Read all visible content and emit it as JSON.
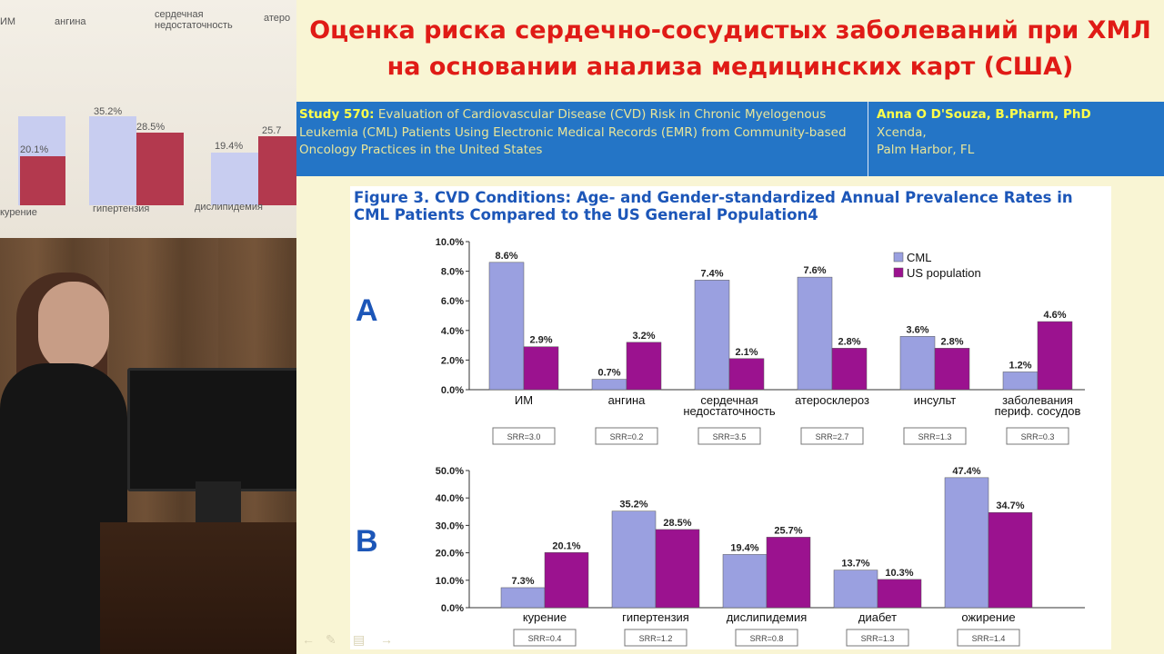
{
  "slide": {
    "title_line1": "Оценка риска сердечно-сосудистых заболеваний при ХМЛ",
    "title_line2": "на основании анализа медицинских карт (США)",
    "study_id": "Study 570:",
    "study_text": "Evaluation of Cardiovascular Disease (CVD) Risk in Chronic Myelogenous Leukemia (CML) Patients Using Electronic Medical Records (EMR) from Community-based Oncology Practices in the United States",
    "author_name": "Anna O D'Souza, B.Pharm, PhD",
    "author_org": "Xcenda,",
    "author_city": "Palm Harbor, FL",
    "figure_title": "Figure 3. CVD Conditions: Age- and Gender-standardized Annual Prevalence Rates in CML Patients Compared to the US General Population4"
  },
  "colors": {
    "title_red": "#e01b16",
    "band_blue": "#2475c6",
    "cml": "#9aa0e0",
    "us_population": "#9b128f",
    "figure_title_blue": "#1c56b8"
  },
  "background_screen": {
    "labels": [
      "ИМ",
      "ангина",
      "сердечная недостаточность",
      "атеро",
      "курение",
      "гипертензия",
      "дислипидемия"
    ],
    "values": [
      "35.2%",
      "28.5%",
      "20.1%",
      "19.4%",
      "25.7"
    ]
  },
  "chart_data": [
    {
      "panel": "A",
      "type": "bar",
      "categories": [
        "ИМ",
        "ангина",
        "сердечная недостаточность",
        "атеросклероз",
        "инсульт",
        "заболевания периф. сосудов"
      ],
      "category_lines": [
        [
          "ИМ"
        ],
        [
          "ангина"
        ],
        [
          "сердечная",
          "недостаточность"
        ],
        [
          "атеросклероз"
        ],
        [
          "инсульт"
        ],
        [
          "заболевания",
          "периф. сосудов"
        ]
      ],
      "series": [
        {
          "name": "CML",
          "values": [
            8.6,
            0.7,
            7.4,
            7.6,
            3.6,
            1.2
          ]
        },
        {
          "name": "US population",
          "values": [
            2.9,
            3.2,
            2.1,
            2.8,
            2.8,
            4.6
          ]
        }
      ],
      "data_labels": [
        [
          "8.6%",
          "0.7%",
          "7.4%",
          "7.6%",
          "3.6%",
          "1.2%"
        ],
        [
          "2.9%",
          "3.2%",
          "2.1%",
          "2.8%",
          "2.8%",
          "4.6%"
        ]
      ],
      "srr": [
        "SRR=3.0",
        "SRR=0.2",
        "SRR=3.5",
        "SRR=2.7",
        "SRR=1.3",
        "SRR=0.3"
      ],
      "yticks": [
        "0.0%",
        "2.0%",
        "4.0%",
        "6.0%",
        "8.0%",
        "10.0%"
      ],
      "ylim": [
        0,
        10
      ],
      "legend": [
        "CML",
        "US population"
      ],
      "legend_position": "top-right",
      "title": "",
      "xlabel": "",
      "ylabel": ""
    },
    {
      "panel": "B",
      "type": "bar",
      "categories": [
        "курение",
        "гипертензия",
        "дислипидемия",
        "диабет",
        "ожирение"
      ],
      "category_lines": [
        [
          "курение"
        ],
        [
          "гипертензия"
        ],
        [
          "дислипидемия"
        ],
        [
          "диабет"
        ],
        [
          "ожирение"
        ]
      ],
      "series": [
        {
          "name": "CML",
          "values": [
            7.3,
            35.2,
            19.4,
            13.7,
            47.4
          ]
        },
        {
          "name": "US population",
          "values": [
            20.1,
            28.5,
            25.7,
            10.3,
            34.7
          ]
        }
      ],
      "data_labels": [
        [
          "7.3%",
          "35.2%",
          "19.4%",
          "13.7%",
          "47.4%"
        ],
        [
          "20.1%",
          "28.5%",
          "25.7%",
          "10.3%",
          "34.7%"
        ]
      ],
      "srr": [
        "SRR=0.4",
        "SRR=1.2",
        "SRR=0.8",
        "SRR=1.3",
        "SRR=1.4"
      ],
      "yticks": [
        "0.0%",
        "10.0%",
        "20.0%",
        "30.0%",
        "40.0%",
        "50.0%"
      ],
      "ylim": [
        0,
        50
      ],
      "title": "",
      "xlabel": "",
      "ylabel": ""
    }
  ]
}
